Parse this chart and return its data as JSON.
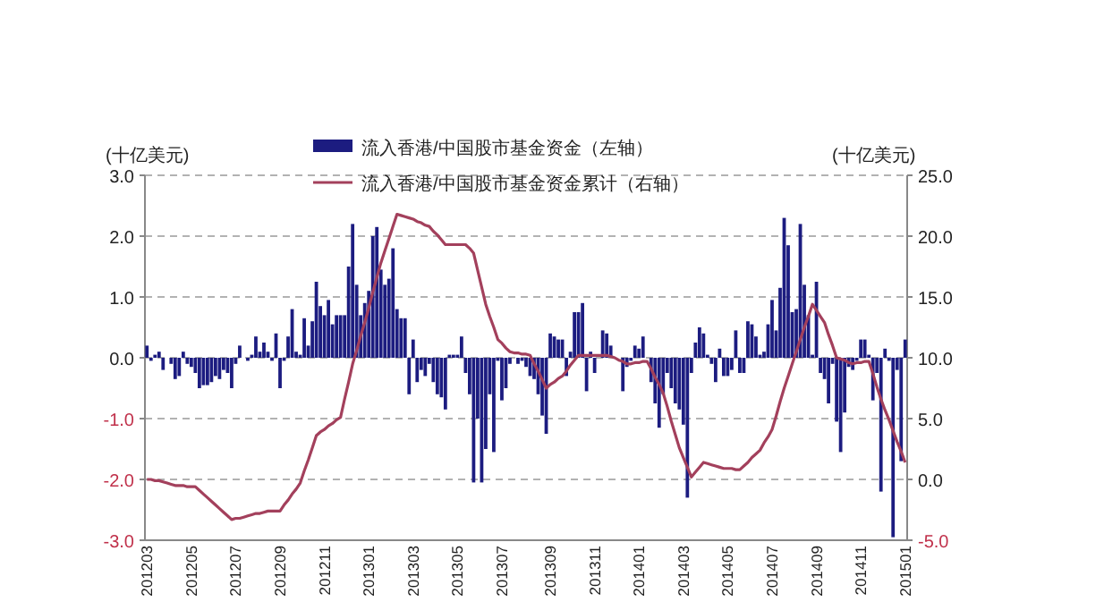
{
  "chart_data": {
    "type": "bar",
    "ylabel": "(十亿美元)",
    "y2label": "(十亿美元)",
    "grid": "y",
    "legend": "top",
    "categories": [
      "201203",
      null,
      null,
      null,
      null,
      null,
      null,
      null,
      null,
      null,
      null,
      "201205",
      null,
      null,
      null,
      null,
      null,
      null,
      null,
      null,
      null,
      null,
      "201207",
      null,
      null,
      null,
      null,
      null,
      null,
      null,
      null,
      null,
      null,
      "201209",
      null,
      null,
      null,
      null,
      null,
      null,
      null,
      null,
      null,
      null,
      "201211",
      null,
      null,
      null,
      null,
      null,
      null,
      null,
      null,
      null,
      null,
      "201301",
      null,
      null,
      null,
      null,
      null,
      null,
      null,
      null,
      null,
      null,
      "201303",
      null,
      null,
      null,
      null,
      null,
      null,
      null,
      null,
      null,
      null,
      "201305",
      null,
      null,
      null,
      null,
      null,
      null,
      null,
      null,
      null,
      null,
      "201307",
      null,
      null,
      null,
      null,
      null,
      null,
      null,
      null,
      null,
      null,
      null,
      "201309",
      null,
      null,
      null,
      null,
      null,
      null,
      null,
      null,
      null,
      null,
      "201311",
      null,
      null,
      null,
      null,
      null,
      null,
      null,
      null,
      null,
      null,
      "201401",
      null,
      null,
      null,
      null,
      null,
      null,
      null,
      null,
      null,
      null,
      "201403",
      null,
      null,
      null,
      null,
      null,
      null,
      null,
      null,
      null,
      null,
      "201405",
      null,
      null,
      null,
      null,
      null,
      null,
      null,
      null,
      null,
      null,
      "201407",
      null,
      null,
      null,
      null,
      null,
      null,
      null,
      null,
      null,
      null,
      "201409",
      null,
      null,
      null,
      null,
      null,
      null,
      null,
      null,
      null,
      null,
      "201411",
      null,
      null,
      null,
      null,
      null,
      null,
      null,
      null,
      null,
      null,
      "201501"
    ],
    "ylim": [
      -3,
      3
    ],
    "yticks": [
      {
        "value": -3,
        "label": "-3.0"
      },
      {
        "value": -2,
        "label": "-2.0"
      },
      {
        "value": -1,
        "label": "-1.0"
      },
      {
        "value": 0,
        "label": "0.0"
      },
      {
        "value": 1,
        "label": "1.0"
      },
      {
        "value": 2,
        "label": "2.0"
      },
      {
        "value": 3,
        "label": "3.0"
      }
    ],
    "y2lim": [
      -5,
      25
    ],
    "y2ticks": [
      {
        "value": -5,
        "label": "-5.0"
      },
      {
        "value": 0,
        "label": "0.0"
      },
      {
        "value": 5,
        "label": "5.0"
      },
      {
        "value": 10,
        "label": "10.0"
      },
      {
        "value": 15,
        "label": "15.0"
      },
      {
        "value": 20,
        "label": "20.0"
      },
      {
        "value": 25,
        "label": "25.0"
      }
    ],
    "series": [
      {
        "name": "流入香港/中国股市基金资金（左轴）",
        "color": "#1c1c80",
        "values": [
          0.2,
          -0.05,
          0.05,
          0.1,
          -0.2,
          0,
          -0.1,
          -0.35,
          -0.3,
          0.1,
          -0.1,
          -0.15,
          -0.25,
          -0.5,
          -0.45,
          -0.45,
          -0.4,
          -0.3,
          -0.35,
          -0.2,
          -0.25,
          -0.5,
          -0.1,
          0.2,
          0,
          -0.05,
          0.05,
          0.35,
          0.1,
          0.25,
          0.1,
          -0.05,
          0.4,
          -0.5,
          -0.05,
          0.35,
          0.8,
          0.1,
          0.05,
          0.65,
          0.2,
          0.6,
          1.25,
          0.85,
          0.7,
          0.95,
          0.55,
          0.7,
          0.7,
          0.7,
          1.5,
          2.2,
          1.2,
          0.7,
          0.9,
          1.1,
          2.0,
          2.15,
          1.45,
          1.2,
          1.3,
          1.8,
          0.8,
          0.65,
          0.65,
          -0.6,
          0.3,
          -0.4,
          -0.2,
          -0.3,
          -0.1,
          -0.4,
          -0.6,
          -0.65,
          -0.85,
          0.05,
          0.05,
          0.05,
          0.35,
          -0.25,
          -0.6,
          -2.05,
          -1.0,
          -2.05,
          -1.5,
          -0.6,
          -1.55,
          -0.05,
          -0.7,
          -0.5,
          -0.1,
          0,
          -0.1,
          -0.05,
          -0.15,
          -0.3,
          -0.35,
          -0.6,
          -0.95,
          -1.25,
          0.4,
          0.35,
          0.3,
          0.3,
          -0.3,
          0.1,
          0.75,
          0.75,
          0.9,
          -0.55,
          0.1,
          -0.25,
          null,
          0.45,
          0.4,
          0.2,
          null,
          0,
          -0.55,
          -0.15,
          -0.05,
          0.2,
          0.15,
          0.35,
          null,
          -0.4,
          -0.75,
          -1.15,
          -0.6,
          -0.25,
          -0.5,
          -0.75,
          -0.85,
          -1.1,
          -2.3,
          -0.25,
          0.25,
          0.5,
          0.4,
          0.05,
          -0.1,
          -0.4,
          0.15,
          -0.3,
          -0.3,
          -0.2,
          0.45,
          -0.25,
          -0.25,
          0.6,
          0.55,
          0.35,
          0.05,
          0.1,
          0.55,
          0.95,
          0.45,
          1.15,
          2.3,
          1.85,
          0.75,
          0.8,
          2.2,
          1.2,
          0.7,
          0.05,
          1.25,
          -0.25,
          -0.35,
          -0.75,
          -0.1,
          -1.05,
          -1.55,
          -0.9,
          -0.15,
          -0.2,
          -0.05,
          0.3,
          0.3,
          0.05,
          -0.7,
          -0.25,
          -2.2,
          0.15,
          -0.05,
          -2.95,
          -0.2,
          -1.7,
          0.3
        ]
      },
      {
        "name": "流入香港/中国股市基金资金累计（右轴）",
        "type": "line",
        "axis": "y2",
        "color": "#a3405c",
        "values": [
          0.0,
          0.0,
          -0.1,
          -0.1,
          -0.2,
          -0.3,
          -0.4,
          -0.5,
          -0.5,
          -0.5,
          -0.6,
          -0.6,
          -0.6,
          -0.9,
          -1.2,
          -1.5,
          -1.8,
          -2.1,
          -2.4,
          -2.7,
          -3.0,
          -3.3,
          -3.2,
          -3.2,
          -3.1,
          -3.0,
          -2.9,
          -2.8,
          -2.8,
          -2.7,
          -2.6,
          -2.6,
          -2.6,
          -2.6,
          -2.1,
          -1.7,
          -1.2,
          -0.8,
          -0.3,
          0.7,
          1.6,
          2.6,
          3.6,
          3.9,
          4.1,
          4.4,
          4.6,
          4.9,
          5.1,
          6.6,
          8.0,
          9.5,
          10.6,
          11.8,
          12.9,
          14.1,
          15.4,
          16.6,
          17.8,
          18.8,
          19.8,
          20.8,
          21.8,
          21.7,
          21.6,
          21.5,
          21.4,
          21.2,
          21.1,
          20.9,
          20.8,
          20.4,
          20.1,
          19.7,
          19.3,
          19.3,
          19.3,
          19.3,
          19.3,
          19.3,
          19.0,
          18.6,
          17.2,
          15.8,
          14.4,
          13.4,
          12.5,
          11.5,
          11.2,
          10.8,
          10.5,
          10.4,
          10.4,
          10.3,
          10.3,
          10.2,
          9.5,
          8.9,
          8.2,
          7.5,
          7.8,
          8.0,
          8.3,
          8.5,
          8.9,
          9.4,
          9.8,
          10.2,
          10.2,
          10.2,
          10.2,
          10.2,
          10.2,
          10.2,
          10.2,
          10.1,
          10.0,
          9.8,
          9.7,
          9.5,
          9.5,
          9.6,
          9.6,
          9.7,
          9.7,
          9.1,
          8.4,
          7.8,
          7.1,
          6.0,
          4.8,
          3.7,
          2.6,
          1.8,
          1.0,
          0.2,
          0.6,
          1.0,
          1.4,
          1.3,
          1.2,
          1.1,
          1.0,
          0.9,
          0.9,
          0.9,
          0.8,
          0.8,
          1.1,
          1.4,
          1.8,
          2.1,
          2.4,
          3.0,
          3.5,
          4.1,
          5.2,
          6.4,
          7.5,
          8.5,
          9.5,
          10.5,
          11.5,
          12.5,
          13.4,
          14.4,
          13.9,
          13.4,
          12.9,
          11.9,
          11.0,
          10.0,
          9.9,
          9.8,
          9.6,
          9.5,
          9.6,
          9.6,
          9.7,
          9.7,
          8.7,
          7.6,
          6.6,
          5.7,
          4.9,
          4.0,
          3.1,
          2.3,
          1.4
        ]
      }
    ]
  }
}
